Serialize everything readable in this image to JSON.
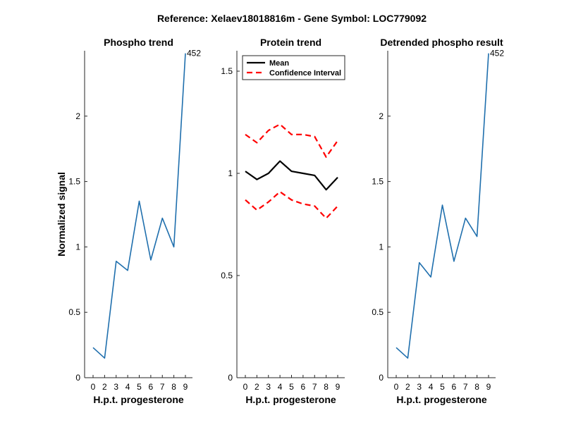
{
  "figure": {
    "suptitle": "Reference:  Xelaev18018816m - Gene Symbol:  LOC779092"
  },
  "chart_data": [
    {
      "type": "line",
      "title": "Phospho trend",
      "xlabel": "H.p.t. progesterone",
      "ylabel": "Normalized signal",
      "x_categories": [
        "0",
        "2",
        "3",
        "4",
        "5",
        "6",
        "7",
        "8",
        "9"
      ],
      "ylim": [
        0,
        2.5
      ],
      "yticks": [
        0,
        0.5,
        1,
        1.5,
        2
      ],
      "ytick_labels": [
        "0",
        "0.5",
        "1",
        "1.5",
        "2"
      ],
      "series": [
        {
          "color": "#1f6fad",
          "style": "solid",
          "values": [
            0.23,
            0.15,
            0.89,
            0.82,
            1.35,
            0.9,
            1.22,
            1.0,
            2.48
          ]
        }
      ],
      "annotations": [
        {
          "text": "452",
          "x_index": 8,
          "y": 2.48
        }
      ],
      "grid": false,
      "legend": null
    },
    {
      "type": "line",
      "title": "Protein trend",
      "xlabel": "H.p.t. progesterone",
      "ylabel": "",
      "x_categories": [
        "0",
        "2",
        "3",
        "4",
        "5",
        "6",
        "7",
        "8",
        "9"
      ],
      "ylim": [
        0,
        1.6
      ],
      "yticks": [
        0,
        0.5,
        1,
        1.5
      ],
      "ytick_labels": [
        "0",
        "0.5",
        "1",
        "1.5"
      ],
      "series": [
        {
          "name": "Mean",
          "color": "#000000",
          "style": "solid",
          "values": [
            1.01,
            0.97,
            1.0,
            1.06,
            1.01,
            1.0,
            0.99,
            0.92,
            0.98
          ]
        },
        {
          "name": "Confidence Interval",
          "color": "#ff0000",
          "style": "dashed",
          "values": [
            1.19,
            1.15,
            1.21,
            1.24,
            1.19,
            1.19,
            1.18,
            1.08,
            1.16
          ]
        },
        {
          "color": "#ff0000",
          "style": "dashed",
          "values": [
            0.87,
            0.82,
            0.86,
            0.91,
            0.87,
            0.85,
            0.84,
            0.78,
            0.84
          ]
        }
      ],
      "grid": false,
      "legend": {
        "placement": "top-left",
        "entries": [
          "Mean",
          "Confidence Interval"
        ]
      }
    },
    {
      "type": "line",
      "title": "Detrended phospho result",
      "xlabel": "H.p.t. progesterone",
      "ylabel": "",
      "x_categories": [
        "0",
        "2",
        "3",
        "4",
        "5",
        "6",
        "7",
        "8",
        "9"
      ],
      "ylim": [
        0,
        2.5
      ],
      "yticks": [
        0,
        0.5,
        1,
        1.5,
        2
      ],
      "ytick_labels": [
        "0",
        "0.5",
        "1",
        "1.5",
        "2"
      ],
      "series": [
        {
          "color": "#1f6fad",
          "style": "solid",
          "values": [
            0.23,
            0.15,
            0.88,
            0.77,
            1.32,
            0.89,
            1.22,
            1.08,
            2.48
          ]
        }
      ],
      "annotations": [
        {
          "text": "452",
          "x_index": 8,
          "y": 2.48
        }
      ],
      "grid": false,
      "legend": null
    }
  ]
}
